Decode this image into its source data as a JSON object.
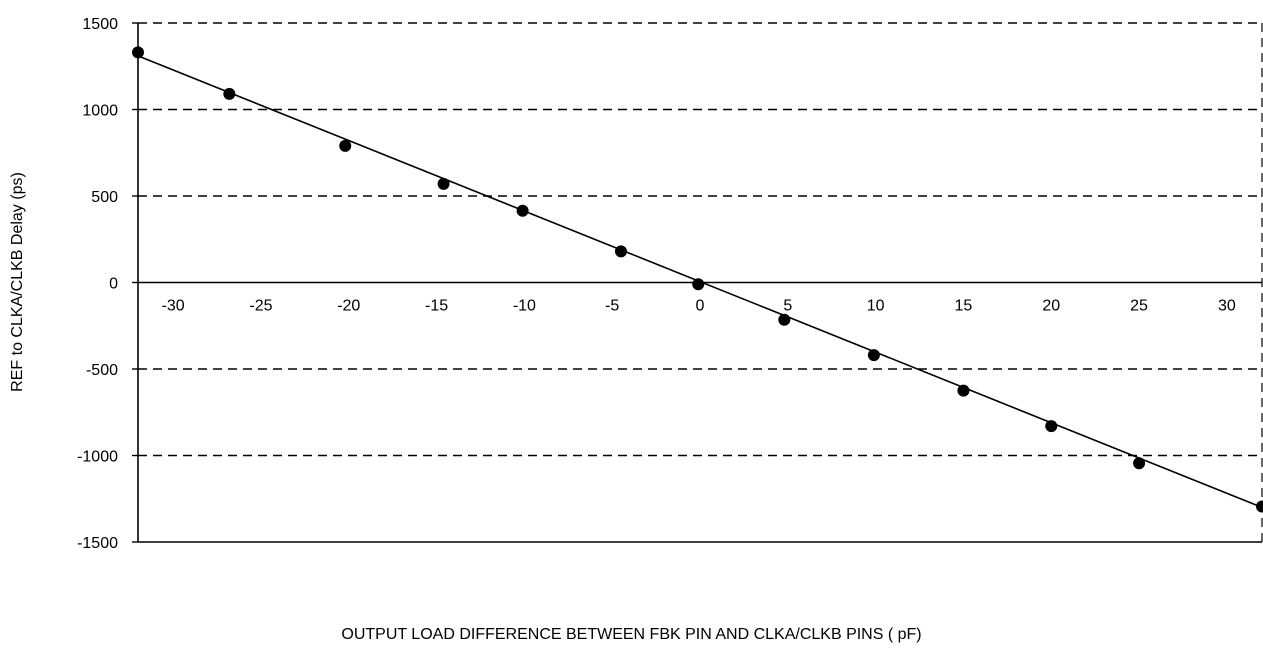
{
  "chart_data": {
    "type": "line",
    "title": "",
    "xlabel": "OUTPUT LOAD DIFFERENCE BETWEEN FBK PIN AND CLKA/CLKB PINS ( pF)",
    "ylabel": "REF to CLKA/CLKB Delay (ps)",
    "xlim": [
      -32,
      32
    ],
    "ylim": [
      -1500,
      1500
    ],
    "x_ticks": [
      -30,
      -25,
      -20,
      -15,
      -10,
      -5,
      0,
      5,
      10,
      15,
      20,
      25,
      30
    ],
    "x_tick_labels": [
      "-30",
      "-25",
      "-20",
      "-15",
      "-10",
      "-5",
      "0",
      "5",
      "10",
      "15",
      "20",
      "25",
      "30"
    ],
    "y_ticks": [
      1500,
      1000,
      500,
      0,
      -500,
      -1000,
      -1500
    ],
    "y_tick_labels": [
      "1500",
      "1000",
      "500",
      "0",
      "-500",
      "-1000",
      "-1500"
    ],
    "grid": "horizontal-dashed",
    "series": [
      {
        "x": [
          -32,
          -26.8,
          -20.2,
          -14.6,
          -10.1,
          -4.5,
          -0.1,
          4.8,
          9.9,
          15.0,
          20.0,
          25.0,
          32
        ],
        "y": [
          1330,
          1090,
          790,
          570,
          415,
          180,
          -10,
          -215,
          -420,
          -625,
          -830,
          -1045,
          -1295
        ]
      }
    ],
    "trendline": {
      "x": [
        -32,
        32
      ],
      "y": [
        1310,
        -1300
      ]
    },
    "colors": {
      "line": "#000000",
      "marker": "#000000",
      "grid": "#000000"
    }
  }
}
